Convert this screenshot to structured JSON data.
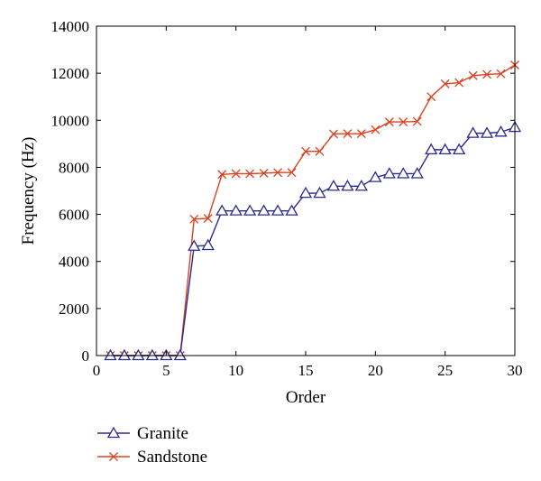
{
  "chart_data": {
    "type": "line",
    "title": "",
    "xlabel": "Order",
    "ylabel": "Frequency (Hz)",
    "xlim": [
      0,
      30
    ],
    "ylim": [
      0,
      14000
    ],
    "xticks": [
      0,
      5,
      10,
      15,
      20,
      25,
      30
    ],
    "yticks": [
      0,
      2000,
      4000,
      6000,
      8000,
      10000,
      12000,
      14000
    ],
    "grid": false,
    "legend_position": "bottom-left, below plot",
    "x": [
      1,
      2,
      3,
      4,
      5,
      6,
      7,
      8,
      9,
      10,
      11,
      12,
      13,
      14,
      15,
      16,
      17,
      18,
      19,
      20,
      21,
      22,
      23,
      24,
      25,
      26,
      27,
      28,
      29,
      30
    ],
    "series": [
      {
        "name": "Granite",
        "color": "#2b2b8f",
        "marker": "triangle-open",
        "values": [
          0,
          0,
          0,
          0,
          0,
          0,
          4650,
          4680,
          6150,
          6150,
          6150,
          6150,
          6150,
          6150,
          6900,
          6900,
          7200,
          7200,
          7200,
          7570,
          7730,
          7730,
          7730,
          8750,
          8750,
          8750,
          9450,
          9450,
          9500,
          9700
        ]
      },
      {
        "name": "Sandstone",
        "color": "#d9421f",
        "marker": "x",
        "values": [
          0,
          0,
          0,
          0,
          0,
          0,
          5800,
          5830,
          7700,
          7730,
          7730,
          7750,
          7780,
          7780,
          8680,
          8680,
          9420,
          9430,
          9430,
          9600,
          9930,
          9930,
          9950,
          11000,
          11550,
          11600,
          11900,
          11950,
          11980,
          12350
        ]
      }
    ]
  }
}
